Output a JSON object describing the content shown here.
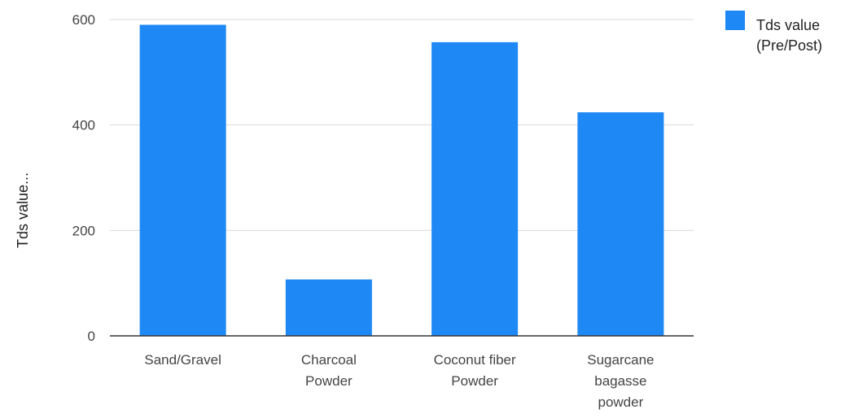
{
  "chart_data": {
    "type": "bar",
    "title": "",
    "xlabel": "",
    "ylabel": "Tds value...",
    "categories": [
      [
        "Sand/Gravel"
      ],
      [
        "Charcoal",
        "Powder"
      ],
      [
        "Coconut fiber",
        "Powder"
      ],
      [
        "Sugarcane",
        "bagasse",
        "powder"
      ]
    ],
    "series": [
      {
        "name": [
          "Tds value",
          "(Pre/Post)"
        ],
        "values": [
          590,
          107,
          557,
          424
        ],
        "color": "#1e88f5"
      }
    ],
    "ylim": [
      0,
      600
    ],
    "yticks": [
      "0",
      "200",
      "400",
      "600"
    ],
    "grid": true,
    "legend_position": "top-right"
  }
}
